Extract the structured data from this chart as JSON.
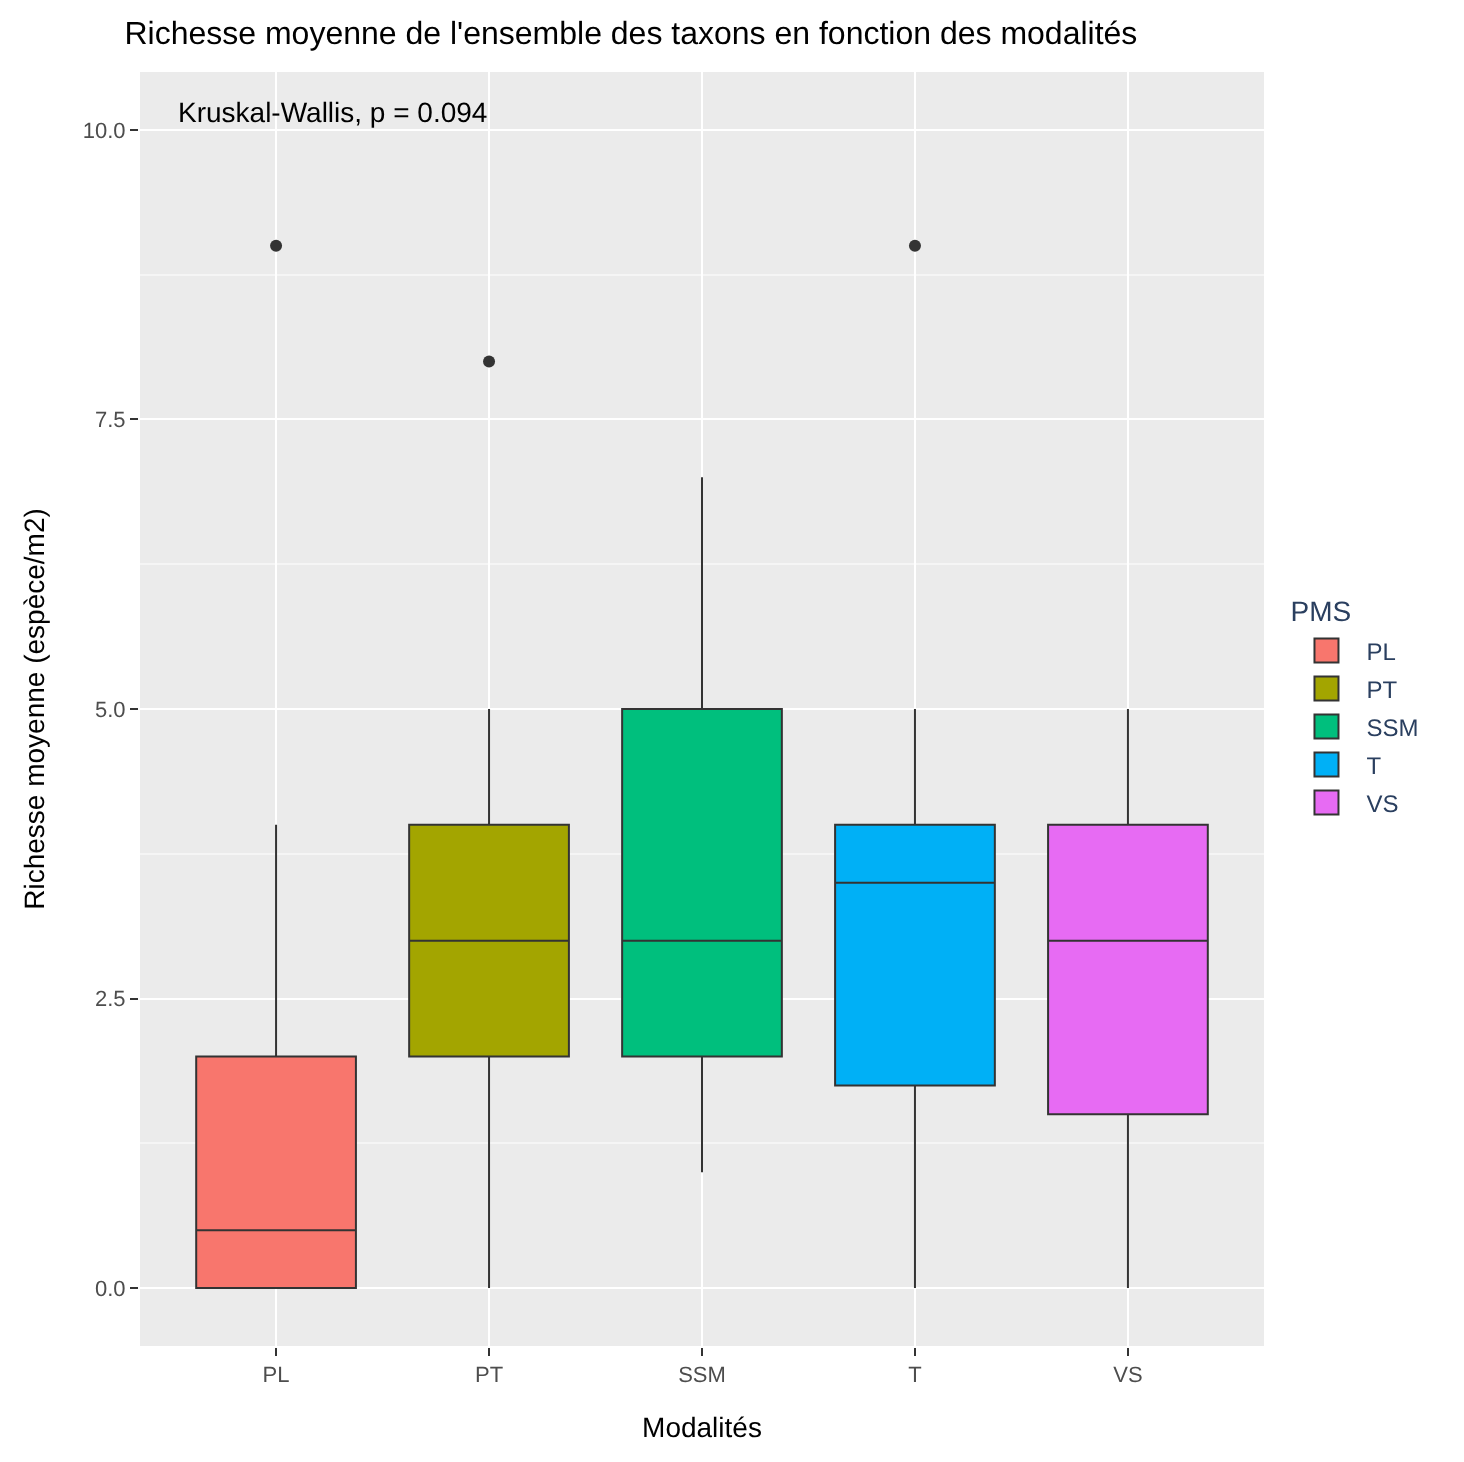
{
  "chart_data": {
    "type": "box",
    "title": "Richesse moyenne de l'ensemble des taxons en fonction des modalités",
    "xlabel": "Modalités",
    "ylabel": "Richesse moyenne (espèce/m2)",
    "legend_title": "PMS",
    "categories": [
      "PL",
      "PT",
      "SSM",
      "T",
      "VS"
    ],
    "series": [
      {
        "name": "PL",
        "color": "#f8766d",
        "boxes": [
          {
            "low": 0,
            "q1": 0,
            "median": 0.5,
            "q3": 2,
            "high": 4
          },
          null,
          null,
          null,
          null
        ]
      },
      {
        "name": "PT",
        "color": "#a3a500",
        "boxes": [
          null,
          {
            "low": 0,
            "q1": 2,
            "median": 3,
            "q3": 4,
            "high": 5
          },
          null,
          null,
          null
        ]
      },
      {
        "name": "SSM",
        "color": "#00bf7d",
        "boxes": [
          null,
          null,
          {
            "low": 1,
            "q1": 2,
            "median": 3,
            "q3": 5,
            "high": 7
          },
          null,
          null
        ]
      },
      {
        "name": "T",
        "color": "#00b0f6",
        "boxes": [
          null,
          null,
          null,
          {
            "low": 0,
            "q1": 1.75,
            "median": 3.5,
            "q3": 4,
            "high": 5
          },
          null
        ]
      },
      {
        "name": "VS",
        "color": "#e76bf3",
        "boxes": [
          null,
          null,
          null,
          null,
          {
            "low": 0,
            "q1": 1.5,
            "median": 3,
            "q3": 4,
            "high": 5
          }
        ]
      },
      {
        "type": "scatter",
        "x": [
          "PL",
          "PT",
          "T"
        ],
        "values": [
          9,
          8,
          9
        ],
        "color": "#333333"
      }
    ],
    "ylim": [
      -0.5,
      10.5
    ],
    "yticks": [
      {
        "value": 0,
        "label": "0.0"
      },
      {
        "value": 2.5,
        "label": "2.5"
      },
      {
        "value": 5,
        "label": "5.0"
      },
      {
        "value": 7.5,
        "label": "7.5"
      },
      {
        "value": 10,
        "label": "10.0"
      }
    ],
    "annotations": [
      "Kruskal-Wallis, p = 0.094"
    ],
    "grid": true,
    "legend": "right",
    "marker": "circle"
  }
}
